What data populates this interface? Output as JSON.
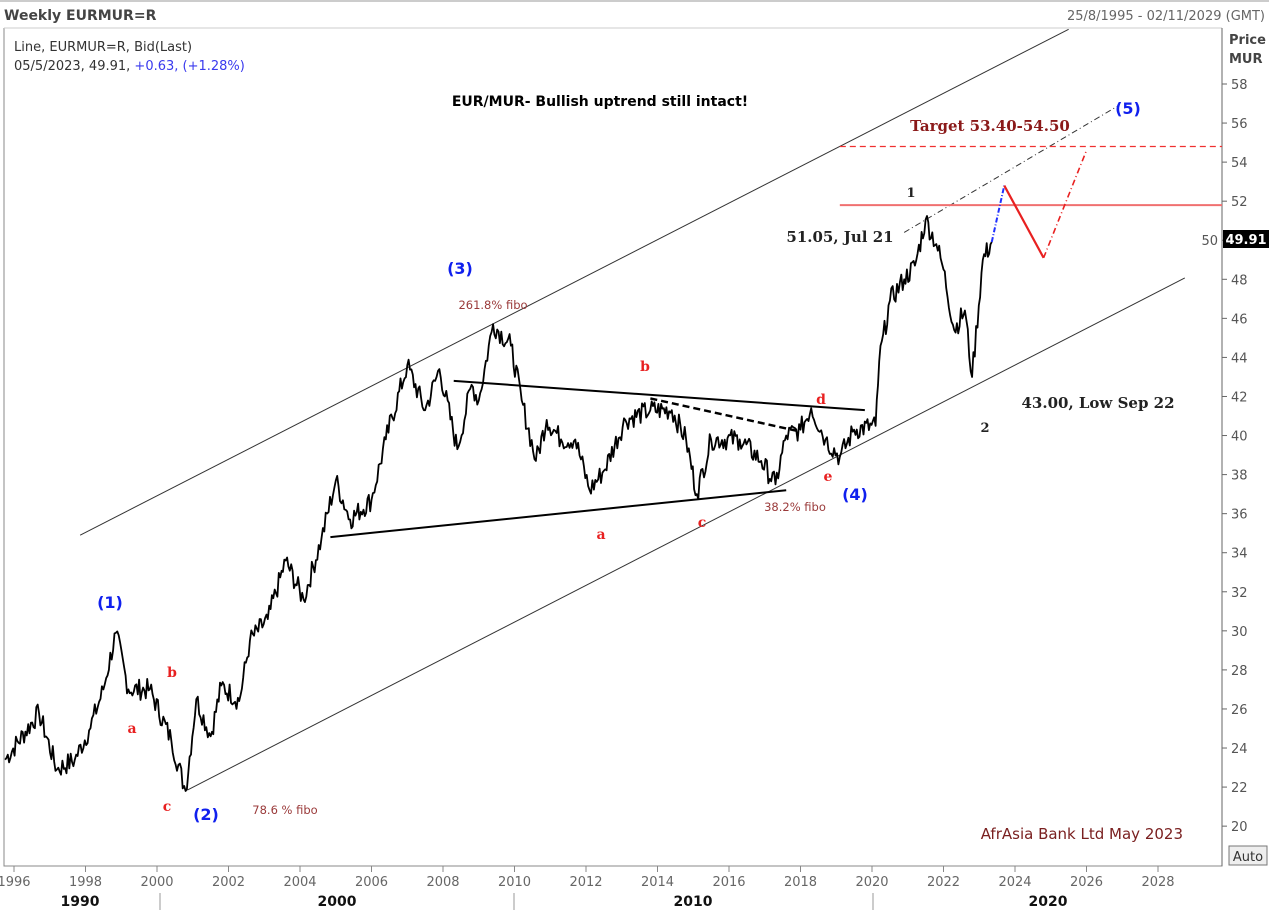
{
  "header": {
    "title": "Weekly EURMUR=R",
    "date_range": "25/8/1995 - 02/11/2029 (GMT)",
    "series_desc": "Line, EURMUR=R, Bid(Last)",
    "last_date_value": "05/5/2023, 49.91,",
    "change": "+0.63, (+1.28%)"
  },
  "axis": {
    "price_label": "Price",
    "currency_label": "MUR",
    "last_price_tag": "49.91",
    "auto_button": "Auto",
    "decades": [
      "1990",
      "2000",
      "2010",
      "2020"
    ]
  },
  "colors": {
    "price": "#000000",
    "wave_labels": "#1020ee",
    "sub_labels": "#e82020",
    "target": "#8b1a1a",
    "projection_up": "#2030ff",
    "projection_red": "#e82020"
  },
  "chart_data": {
    "type": "line",
    "title": "EUR/MUR- Bullish uptrend still intact!",
    "xlabel": "",
    "ylabel": "Price MUR",
    "xlim": [
      1995.65,
      2029.8
    ],
    "ylim": [
      19,
      59.5
    ],
    "x_ticks": [
      1996,
      1998,
      2000,
      2002,
      2004,
      2006,
      2008,
      2010,
      2012,
      2014,
      2016,
      2018,
      2020,
      2022,
      2024,
      2026,
      2028
    ],
    "y_ticks": [
      20,
      22,
      24,
      26,
      28,
      30,
      32,
      34,
      36,
      38,
      40,
      42,
      44,
      46,
      48,
      50,
      52,
      54,
      56,
      58
    ],
    "grid": false,
    "series": [
      {
        "x": [
          1995.75,
          1996.7,
          1997.2,
          1997.7,
          1998.1,
          1998.5,
          1998.85,
          1999.2,
          1999.8,
          2000.4,
          2000.8,
          2001.1,
          2001.5,
          2001.8,
          2002.3,
          2002.6,
          2003.1,
          2003.6,
          2004.1,
          2004.6,
          2005.0,
          2005.4,
          2006.0,
          2006.4,
          2007.0,
          2007.5,
          2007.9,
          2008.4,
          2008.8,
          2009.0,
          2009.4,
          2009.9,
          2010.2,
          2010.6,
          2010.9,
          2011.3,
          2011.7,
          2012.1,
          2012.5,
          2013.1,
          2013.8,
          2014.4,
          2014.8,
          2015.1,
          2015.5,
          2016.3,
          2016.9,
          2017.3,
          2017.6,
          2018.0,
          2018.3,
          2018.7,
          2019.1,
          2019.5,
          2020.1,
          2020.2,
          2020.5,
          2020.9,
          2021.2,
          2021.5,
          2021.8,
          2022.0,
          2022.3,
          2022.6,
          2022.8,
          2023.1,
          2023.35
        ],
        "y": [
          23.4,
          25.8,
          22.9,
          23.4,
          24.9,
          27.0,
          29.9,
          27.0,
          27.0,
          24.4,
          21.8,
          26.5,
          24.6,
          27.2,
          26.4,
          29.5,
          30.6,
          33.6,
          31.6,
          34.7,
          37.7,
          35.7,
          36.7,
          39.8,
          43.6,
          41.3,
          43.4,
          39.3,
          42.6,
          41.8,
          45.7,
          44.6,
          41.8,
          38.7,
          40.8,
          39.8,
          39.8,
          37.2,
          38.2,
          40.8,
          41.3,
          41.3,
          39.8,
          37.0,
          39.8,
          39.8,
          38.7,
          37.5,
          40.0,
          40.3,
          41.4,
          39.8,
          38.9,
          40.3,
          40.5,
          43.8,
          46.9,
          48.0,
          48.7,
          51.05,
          49.8,
          48.5,
          45.4,
          46.4,
          43.0,
          49.0,
          49.91
        ]
      }
    ],
    "projection": {
      "blue_up": {
        "x": [
          2023.35,
          2023.7
        ],
        "y": [
          49.91,
          52.8
        ]
      },
      "red_down": {
        "x": [
          2023.7,
          2024.8
        ],
        "y": [
          52.8,
          49.1
        ]
      },
      "red_up": {
        "x": [
          2024.8,
          2026.0
        ],
        "y": [
          49.1,
          54.6
        ]
      }
    },
    "trendlines": {
      "upper_channel": {
        "x": [
          1997.85,
          2025.5
        ],
        "y": [
          34.9,
          60.8
        ]
      },
      "lower_channel": {
        "x": [
          2000.85,
          2028.75
        ],
        "y": [
          21.85,
          48.07
        ]
      },
      "triangle_top": {
        "x": [
          2008.3,
          2019.8
        ],
        "y": [
          42.8,
          41.3
        ]
      },
      "triangle_bottom": {
        "x": [
          2004.85,
          2017.6
        ],
        "y": [
          34.8,
          37.2
        ]
      },
      "b_d_dashed": {
        "x": [
          2013.8,
          2018.0
        ],
        "y": [
          41.9,
          40.2
        ]
      },
      "wave5_dashdot": {
        "x": [
          2020.9,
          2026.9
        ],
        "y": [
          50.4,
          56.9
        ]
      },
      "level_red_solid": {
        "x": [
          2019.1,
          2029.8
        ],
        "y": [
          51.8,
          51.8
        ]
      },
      "level_red_dashed": {
        "x": [
          2019.1,
          2029.8
        ],
        "y": [
          54.8,
          54.8
        ]
      }
    },
    "annotations": {
      "w1": "(1)",
      "w2": "(2)",
      "w3": "(3)",
      "w4": "(4)",
      "w5": "(5)",
      "a1": "a",
      "b1": "b",
      "c1": "c",
      "a2": "a",
      "b2": "b",
      "c2": "c",
      "d2": "d",
      "e2": "e",
      "n1": "1",
      "n2": "2",
      "fibo786": "78.6 % fibo",
      "fibo2618": "261.8% fibo",
      "fibo382": "38.2% fibo",
      "peak": "51.05, Jul 21",
      "low": "43.00, Low Sep 22",
      "target": "Target 53.40-54.50",
      "credit": "AfrAsia Bank Ltd May 2023"
    }
  }
}
